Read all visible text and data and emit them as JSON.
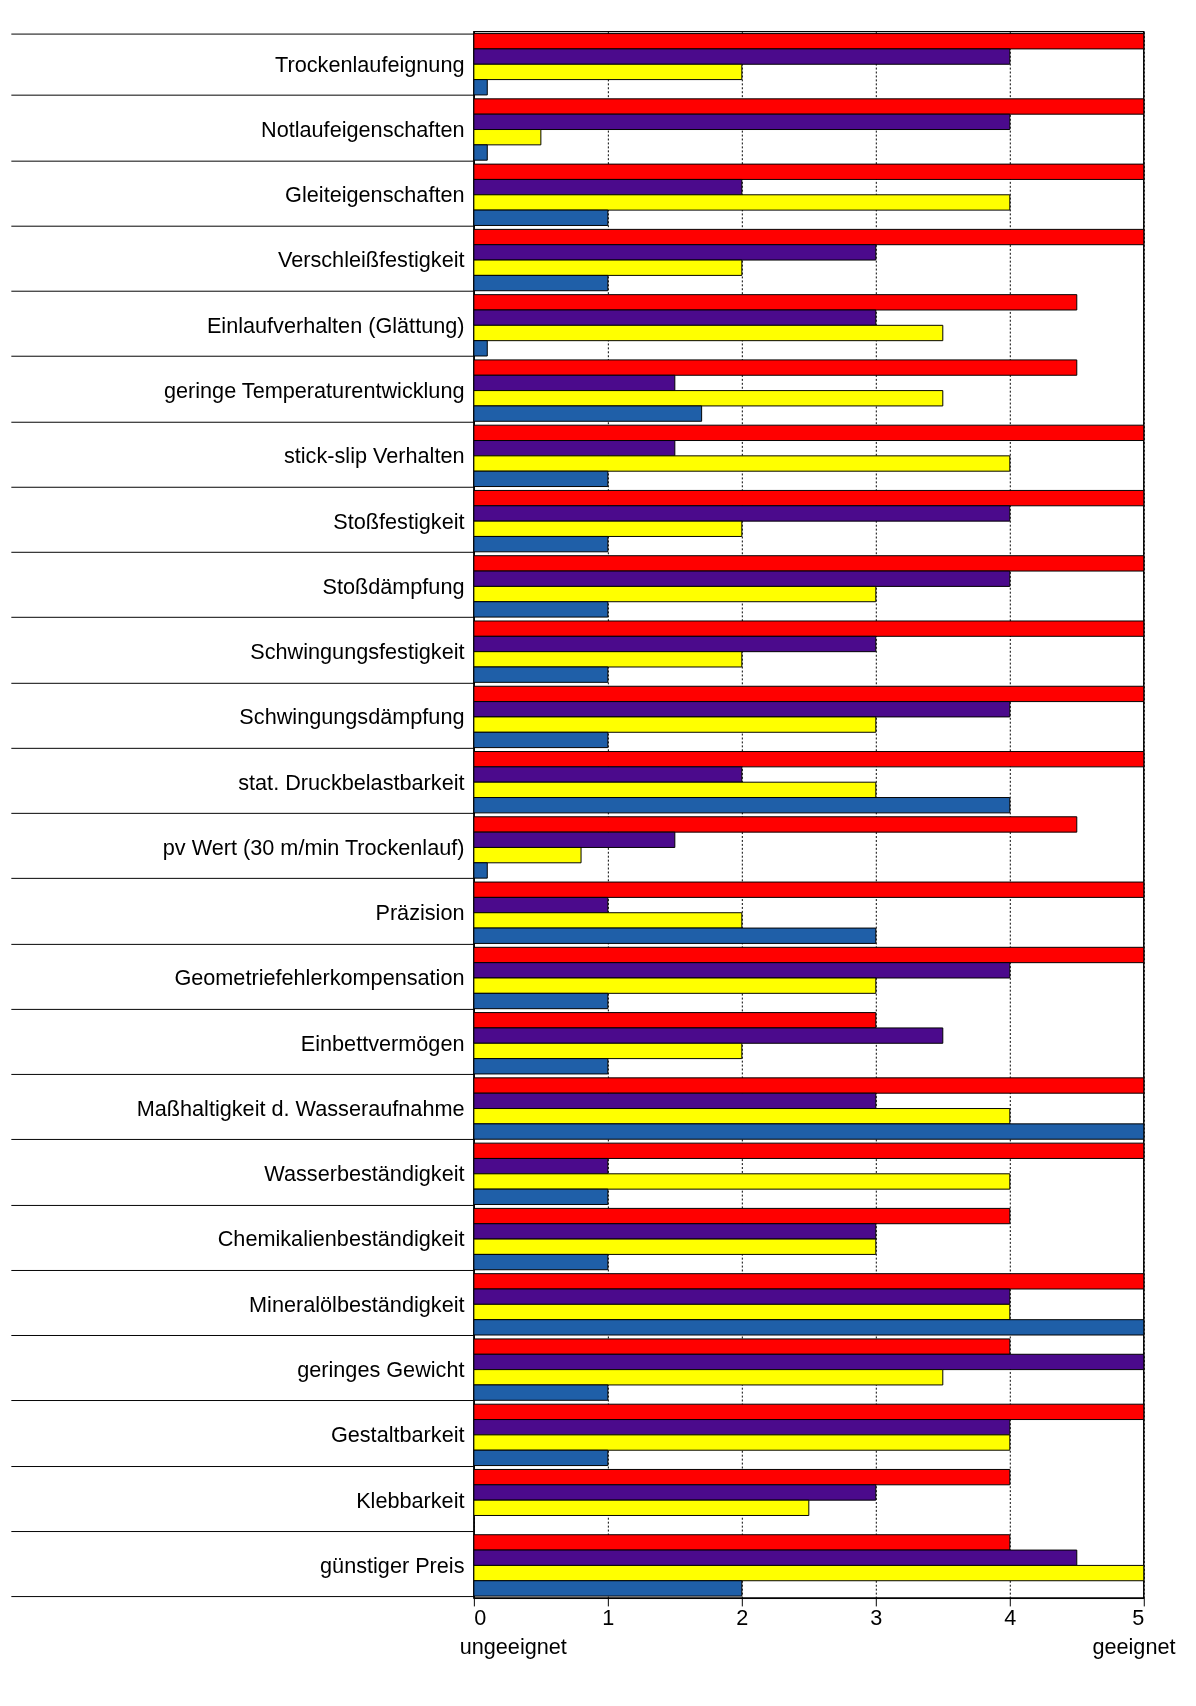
{
  "chart_data": {
    "type": "bar",
    "orientation": "horizontal",
    "categories": [
      "Trockenlaufeignung",
      "Notlaufeigenschaften",
      "Gleiteigenschaften",
      "Verschleißfestigkeit",
      "Einlaufverhalten (Glättung)",
      "geringe Temperaturentwicklung",
      "stick-slip Verhalten",
      "Stoßfestigkeit",
      "Stoßdämpfung",
      "Schwingungsfestigkeit",
      "Schwingungsdämpfung",
      "stat. Druckbelastbarkeit",
      "pv Wert (30 m/min Trockenlauf)",
      "Präzision",
      "Geometriefehlerkompensation",
      "Einbettvermögen",
      "Maßhaltigkeit d. Wasseraufnahme",
      "Wasserbeständigkeit",
      "Chemikalienbeständigkeit",
      "Mineralölbeständigkeit",
      "geringes Gewicht",
      "Gestaltbarkeit",
      "Klebbarkeit",
      "günstiger Preis"
    ],
    "series": [
      {
        "color": "#ff0000",
        "values": [
          5,
          5,
          5,
          5,
          4.5,
          4.5,
          5,
          5,
          5,
          5,
          5,
          5,
          4.5,
          5,
          5,
          3,
          5,
          5,
          4,
          5,
          4,
          5,
          4,
          4
        ]
      },
      {
        "color": "#4b0a8c",
        "values": [
          4,
          4,
          2,
          3,
          3,
          1.5,
          1.5,
          4,
          4,
          3,
          4,
          2,
          1.5,
          1,
          4,
          3.5,
          3,
          1,
          3,
          4,
          5,
          4,
          3,
          4.5
        ]
      },
      {
        "color": "#ffff00",
        "values": [
          2,
          0.5,
          4,
          2,
          3.5,
          3.5,
          4,
          2,
          3,
          2,
          3,
          3,
          0.8,
          2,
          3,
          2,
          4,
          4,
          3,
          4,
          3.5,
          4,
          2.5,
          5
        ]
      },
      {
        "color": "#1f5fa8",
        "values": [
          0.1,
          0.1,
          1,
          1,
          0.1,
          1.7,
          1,
          1,
          1,
          1,
          1,
          4,
          0.1,
          3,
          1,
          1,
          5,
          1,
          1,
          5,
          1,
          1,
          null,
          2
        ]
      }
    ],
    "xlim": [
      0,
      5
    ],
    "xticks": [
      0,
      1,
      2,
      3,
      4,
      5
    ],
    "grid": "x",
    "legend": false,
    "annotations": [
      "ungeeignet",
      "geeignet"
    ]
  }
}
